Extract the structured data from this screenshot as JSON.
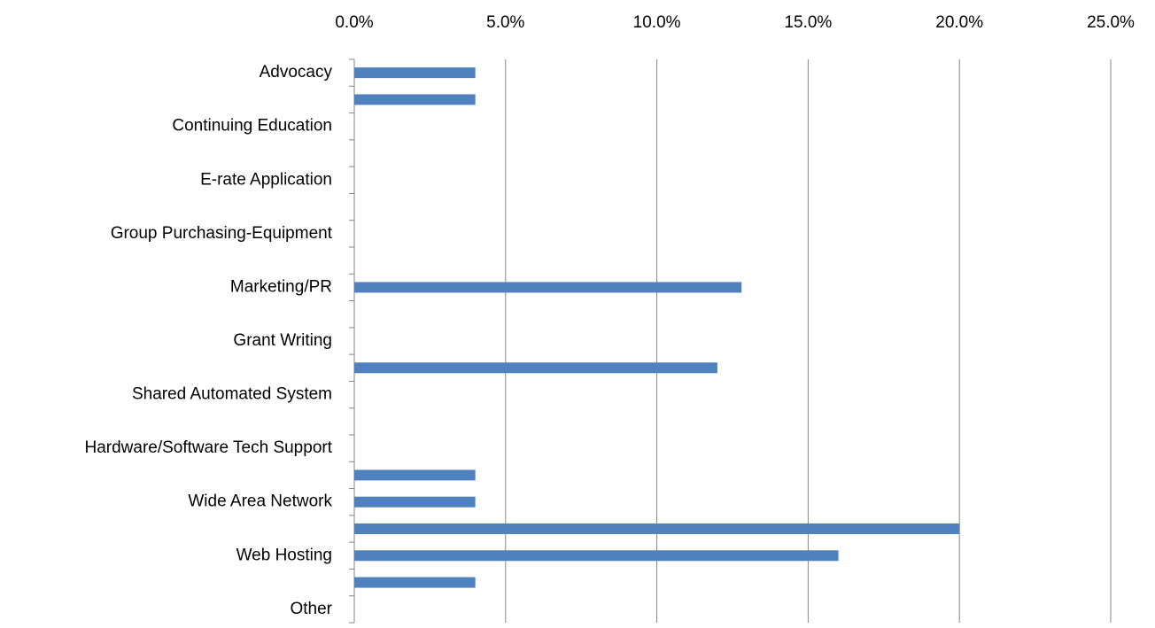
{
  "chart_data": {
    "type": "bar",
    "orientation": "horizontal",
    "categories": [
      "Advocacy",
      null,
      "Continuing Education",
      null,
      "E-rate Application",
      null,
      "Group Purchasing-Equipment",
      null,
      "Marketing/PR",
      null,
      "Grant Writing",
      null,
      "Shared Automated System",
      null,
      "Hardware/Software Tech Support",
      null,
      "Wide Area Network",
      null,
      "Web Hosting",
      null,
      "Other"
    ],
    "values": [
      4,
      4,
      0,
      0,
      0,
      0,
      0,
      0,
      12.8,
      0,
      0,
      12,
      0,
      0,
      0,
      4,
      4,
      20,
      16,
      4,
      0
    ],
    "color": "#4f81bd",
    "xlim": [
      0,
      25
    ],
    "xticks": [
      {
        "value": 0,
        "label": "0.0%"
      },
      {
        "value": 5,
        "label": "5.0%"
      },
      {
        "value": 10,
        "label": "10.0%"
      },
      {
        "value": 15,
        "label": "15.0%"
      },
      {
        "value": 20,
        "label": "20.0%"
      },
      {
        "value": 25,
        "label": "25.0%"
      }
    ],
    "grid": true
  }
}
